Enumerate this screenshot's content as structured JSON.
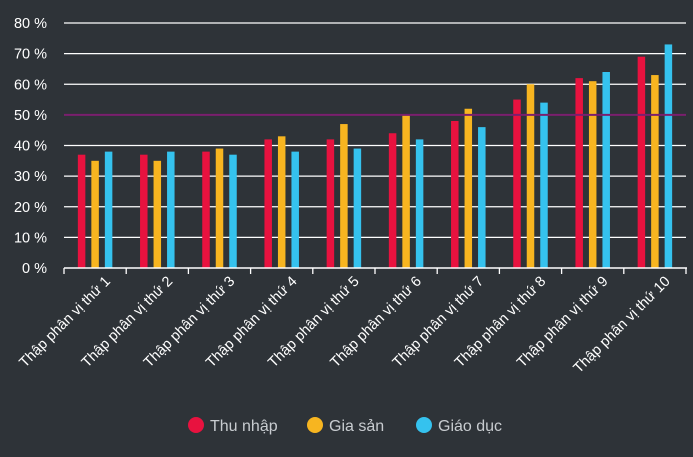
{
  "chart_data": {
    "type": "bar",
    "title": "",
    "xlabel": "",
    "ylabel": "",
    "categories": [
      "Thập phân vị thứ 1",
      "Thập phân vị thứ 2",
      "Thập phân vị thứ 3",
      "Thập phân vị thứ 4",
      "Thập phân vị thứ 5",
      "Thập phân vị thứ 6",
      "Thập phân vị thứ 7",
      "Thập phân vị thứ 8",
      "Thập phân vị thứ 9",
      "Thập phân vị thứ 10"
    ],
    "series": [
      {
        "name": "Thu nhập",
        "color": "#e8123f",
        "values": [
          37,
          37,
          38,
          42,
          42,
          44,
          48,
          55,
          62,
          69
        ]
      },
      {
        "name": "Gia sản",
        "color": "#f7b520",
        "values": [
          35,
          35,
          39,
          43,
          47,
          50,
          52,
          60,
          61,
          63
        ]
      },
      {
        "name": "Giáo dục",
        "color": "#35c2ee",
        "values": [
          38,
          38,
          37,
          38,
          39,
          42,
          46,
          54,
          64,
          73
        ]
      }
    ],
    "ylim": [
      0,
      80
    ],
    "yticks": [
      0,
      10,
      20,
      30,
      40,
      50,
      60,
      70,
      80
    ],
    "ytick_labels": [
      "0 %",
      "10 %",
      "20 %",
      "30 %",
      "40 %",
      "50 %",
      "60 %",
      "70 %",
      "80 %"
    ],
    "reference_line": {
      "value": 50,
      "color": "#7a1f6e"
    },
    "grid": true,
    "legend_position": "bottom",
    "colors": {
      "background": "#2e3338",
      "grid": "#ffffff",
      "text": "#ffffff",
      "legend_text": "#c8ccd0"
    }
  }
}
